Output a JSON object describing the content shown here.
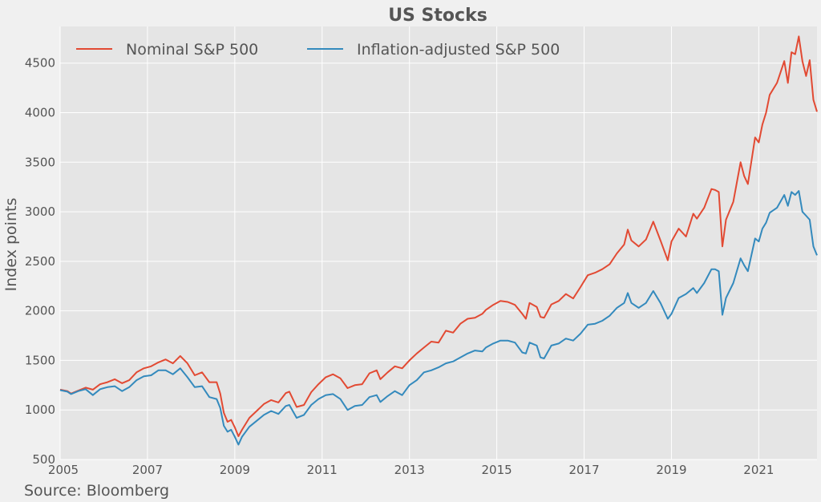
{
  "chart_data": {
    "type": "line",
    "title": "US Stocks",
    "xlabel": "",
    "ylabel": "Index points",
    "source": "Source: Bloomberg",
    "xlim": [
      "2005-01",
      "2022-05"
    ],
    "ylim": [
      500,
      4870
    ],
    "yticks": [
      500,
      1000,
      1500,
      2000,
      2500,
      3000,
      3500,
      4000,
      4500
    ],
    "xticks": [
      "2005",
      "2007",
      "2009",
      "2011",
      "2013",
      "2015",
      "2017",
      "2019",
      "2021"
    ],
    "grid": true,
    "legend_position": "top-left",
    "series": [
      {
        "name": "Nominal S&P 500",
        "color": "#e24a33",
        "points": [
          [
            "2005-01",
            1205
          ],
          [
            "2005-03",
            1190
          ],
          [
            "2005-04",
            1165
          ],
          [
            "2005-06",
            1195
          ],
          [
            "2005-08",
            1225
          ],
          [
            "2005-10",
            1205
          ],
          [
            "2005-12",
            1260
          ],
          [
            "2006-02",
            1280
          ],
          [
            "2006-04",
            1310
          ],
          [
            "2006-06",
            1270
          ],
          [
            "2006-08",
            1300
          ],
          [
            "2006-10",
            1380
          ],
          [
            "2006-12",
            1420
          ],
          [
            "2007-02",
            1440
          ],
          [
            "2007-04",
            1480
          ],
          [
            "2007-06",
            1510
          ],
          [
            "2007-08",
            1470
          ],
          [
            "2007-10",
            1545
          ],
          [
            "2007-12",
            1470
          ],
          [
            "2008-02",
            1350
          ],
          [
            "2008-04",
            1380
          ],
          [
            "2008-06",
            1280
          ],
          [
            "2008-08",
            1280
          ],
          [
            "2008-09",
            1165
          ],
          [
            "2008-10",
            970
          ],
          [
            "2008-11",
            880
          ],
          [
            "2008-12",
            900
          ],
          [
            "2009-01",
            825
          ],
          [
            "2009-02",
            735
          ],
          [
            "2009-03",
            800
          ],
          [
            "2009-05",
            920
          ],
          [
            "2009-07",
            990
          ],
          [
            "2009-09",
            1060
          ],
          [
            "2009-11",
            1100
          ],
          [
            "2010-01",
            1075
          ],
          [
            "2010-03",
            1170
          ],
          [
            "2010-04",
            1185
          ],
          [
            "2010-06",
            1030
          ],
          [
            "2010-08",
            1050
          ],
          [
            "2010-10",
            1180
          ],
          [
            "2010-12",
            1260
          ],
          [
            "2011-02",
            1330
          ],
          [
            "2011-04",
            1360
          ],
          [
            "2011-06",
            1320
          ],
          [
            "2011-08",
            1220
          ],
          [
            "2011-10",
            1250
          ],
          [
            "2011-12",
            1260
          ],
          [
            "2012-02",
            1370
          ],
          [
            "2012-04",
            1400
          ],
          [
            "2012-05",
            1310
          ],
          [
            "2012-07",
            1380
          ],
          [
            "2012-09",
            1440
          ],
          [
            "2012-11",
            1420
          ],
          [
            "2013-01",
            1500
          ],
          [
            "2013-03",
            1570
          ],
          [
            "2013-05",
            1630
          ],
          [
            "2013-07",
            1690
          ],
          [
            "2013-09",
            1680
          ],
          [
            "2013-11",
            1800
          ],
          [
            "2014-01",
            1780
          ],
          [
            "2014-03",
            1870
          ],
          [
            "2014-05",
            1920
          ],
          [
            "2014-07",
            1930
          ],
          [
            "2014-09",
            1970
          ],
          [
            "2014-10",
            2010
          ],
          [
            "2014-12",
            2060
          ],
          [
            "2015-02",
            2100
          ],
          [
            "2015-04",
            2090
          ],
          [
            "2015-06",
            2060
          ],
          [
            "2015-08",
            1970
          ],
          [
            "2015-09",
            1920
          ],
          [
            "2015-10",
            2080
          ],
          [
            "2015-12",
            2040
          ],
          [
            "2016-01",
            1940
          ],
          [
            "2016-02",
            1930
          ],
          [
            "2016-04",
            2065
          ],
          [
            "2016-06",
            2100
          ],
          [
            "2016-08",
            2170
          ],
          [
            "2016-10",
            2125
          ],
          [
            "2016-12",
            2240
          ],
          [
            "2017-02",
            2360
          ],
          [
            "2017-04",
            2385
          ],
          [
            "2017-06",
            2420
          ],
          [
            "2017-08",
            2470
          ],
          [
            "2017-10",
            2580
          ],
          [
            "2017-12",
            2670
          ],
          [
            "2018-01",
            2820
          ],
          [
            "2018-02",
            2710
          ],
          [
            "2018-04",
            2650
          ],
          [
            "2018-06",
            2720
          ],
          [
            "2018-08",
            2900
          ],
          [
            "2018-10",
            2710
          ],
          [
            "2018-12",
            2510
          ],
          [
            "2019-01",
            2700
          ],
          [
            "2019-03",
            2830
          ],
          [
            "2019-05",
            2750
          ],
          [
            "2019-07",
            2980
          ],
          [
            "2019-08",
            2930
          ],
          [
            "2019-10",
            3040
          ],
          [
            "2019-12",
            3230
          ],
          [
            "2020-01",
            3220
          ],
          [
            "2020-02",
            3200
          ],
          [
            "2020-03",
            2650
          ],
          [
            "2020-04",
            2920
          ],
          [
            "2020-06",
            3100
          ],
          [
            "2020-08",
            3500
          ],
          [
            "2020-09",
            3360
          ],
          [
            "2020-10",
            3280
          ],
          [
            "2020-12",
            3750
          ],
          [
            "2021-01",
            3700
          ],
          [
            "2021-02",
            3880
          ],
          [
            "2021-03",
            4000
          ],
          [
            "2021-04",
            4180
          ],
          [
            "2021-06",
            4300
          ],
          [
            "2021-08",
            4520
          ],
          [
            "2021-09",
            4300
          ],
          [
            "2021-10",
            4610
          ],
          [
            "2021-11",
            4590
          ],
          [
            "2021-12",
            4770
          ],
          [
            "2022-01",
            4520
          ],
          [
            "2022-02",
            4370
          ],
          [
            "2022-03",
            4530
          ],
          [
            "2022-04",
            4130
          ],
          [
            "2022-05",
            4010
          ]
        ]
      },
      {
        "name": "Inflation-adjusted S&P 500",
        "color": "#348abd",
        "points": [
          [
            "2005-01",
            1200
          ],
          [
            "2005-03",
            1185
          ],
          [
            "2005-04",
            1160
          ],
          [
            "2005-06",
            1190
          ],
          [
            "2005-08",
            1210
          ],
          [
            "2005-10",
            1150
          ],
          [
            "2005-12",
            1210
          ],
          [
            "2006-02",
            1230
          ],
          [
            "2006-04",
            1240
          ],
          [
            "2006-06",
            1190
          ],
          [
            "2006-08",
            1230
          ],
          [
            "2006-10",
            1300
          ],
          [
            "2006-12",
            1340
          ],
          [
            "2007-02",
            1350
          ],
          [
            "2007-04",
            1400
          ],
          [
            "2007-06",
            1400
          ],
          [
            "2007-08",
            1360
          ],
          [
            "2007-10",
            1420
          ],
          [
            "2007-12",
            1330
          ],
          [
            "2008-02",
            1230
          ],
          [
            "2008-04",
            1240
          ],
          [
            "2008-06",
            1130
          ],
          [
            "2008-08",
            1110
          ],
          [
            "2008-09",
            1020
          ],
          [
            "2008-10",
            840
          ],
          [
            "2008-11",
            780
          ],
          [
            "2008-12",
            800
          ],
          [
            "2009-01",
            730
          ],
          [
            "2009-02",
            650
          ],
          [
            "2009-03",
            730
          ],
          [
            "2009-05",
            830
          ],
          [
            "2009-07",
            890
          ],
          [
            "2009-09",
            950
          ],
          [
            "2009-11",
            990
          ],
          [
            "2010-01",
            960
          ],
          [
            "2010-03",
            1040
          ],
          [
            "2010-04",
            1050
          ],
          [
            "2010-06",
            920
          ],
          [
            "2010-08",
            950
          ],
          [
            "2010-10",
            1050
          ],
          [
            "2010-12",
            1110
          ],
          [
            "2011-02",
            1150
          ],
          [
            "2011-04",
            1160
          ],
          [
            "2011-06",
            1110
          ],
          [
            "2011-08",
            1000
          ],
          [
            "2011-10",
            1040
          ],
          [
            "2011-12",
            1050
          ],
          [
            "2012-02",
            1130
          ],
          [
            "2012-04",
            1150
          ],
          [
            "2012-05",
            1080
          ],
          [
            "2012-07",
            1140
          ],
          [
            "2012-09",
            1190
          ],
          [
            "2012-11",
            1150
          ],
          [
            "2013-01",
            1250
          ],
          [
            "2013-03",
            1300
          ],
          [
            "2013-05",
            1380
          ],
          [
            "2013-07",
            1400
          ],
          [
            "2013-09",
            1430
          ],
          [
            "2013-11",
            1470
          ],
          [
            "2014-01",
            1490
          ],
          [
            "2014-03",
            1530
          ],
          [
            "2014-05",
            1570
          ],
          [
            "2014-07",
            1600
          ],
          [
            "2014-09",
            1590
          ],
          [
            "2014-10",
            1630
          ],
          [
            "2014-12",
            1670
          ],
          [
            "2015-02",
            1700
          ],
          [
            "2015-04",
            1700
          ],
          [
            "2015-06",
            1680
          ],
          [
            "2015-08",
            1580
          ],
          [
            "2015-09",
            1570
          ],
          [
            "2015-10",
            1680
          ],
          [
            "2015-12",
            1650
          ],
          [
            "2016-01",
            1530
          ],
          [
            "2016-02",
            1520
          ],
          [
            "2016-04",
            1650
          ],
          [
            "2016-06",
            1670
          ],
          [
            "2016-08",
            1720
          ],
          [
            "2016-10",
            1700
          ],
          [
            "2016-12",
            1770
          ],
          [
            "2017-02",
            1860
          ],
          [
            "2017-04",
            1870
          ],
          [
            "2017-06",
            1900
          ],
          [
            "2017-08",
            1950
          ],
          [
            "2017-10",
            2030
          ],
          [
            "2017-12",
            2080
          ],
          [
            "2018-01",
            2180
          ],
          [
            "2018-02",
            2080
          ],
          [
            "2018-04",
            2030
          ],
          [
            "2018-06",
            2080
          ],
          [
            "2018-08",
            2200
          ],
          [
            "2018-10",
            2080
          ],
          [
            "2018-12",
            1920
          ],
          [
            "2019-01",
            1970
          ],
          [
            "2019-03",
            2130
          ],
          [
            "2019-05",
            2170
          ],
          [
            "2019-07",
            2230
          ],
          [
            "2019-08",
            2180
          ],
          [
            "2019-10",
            2280
          ],
          [
            "2019-12",
            2420
          ],
          [
            "2020-01",
            2420
          ],
          [
            "2020-02",
            2400
          ],
          [
            "2020-03",
            1960
          ],
          [
            "2020-04",
            2130
          ],
          [
            "2020-06",
            2280
          ],
          [
            "2020-08",
            2530
          ],
          [
            "2020-09",
            2460
          ],
          [
            "2020-10",
            2400
          ],
          [
            "2020-12",
            2730
          ],
          [
            "2021-01",
            2700
          ],
          [
            "2021-02",
            2830
          ],
          [
            "2021-03",
            2890
          ],
          [
            "2021-04",
            2990
          ],
          [
            "2021-06",
            3040
          ],
          [
            "2021-08",
            3170
          ],
          [
            "2021-09",
            3060
          ],
          [
            "2021-10",
            3200
          ],
          [
            "2021-11",
            3170
          ],
          [
            "2021-12",
            3210
          ],
          [
            "2022-01",
            3000
          ],
          [
            "2022-02",
            2960
          ],
          [
            "2022-03",
            2920
          ],
          [
            "2022-04",
            2650
          ],
          [
            "2022-05",
            2560
          ]
        ]
      }
    ]
  }
}
